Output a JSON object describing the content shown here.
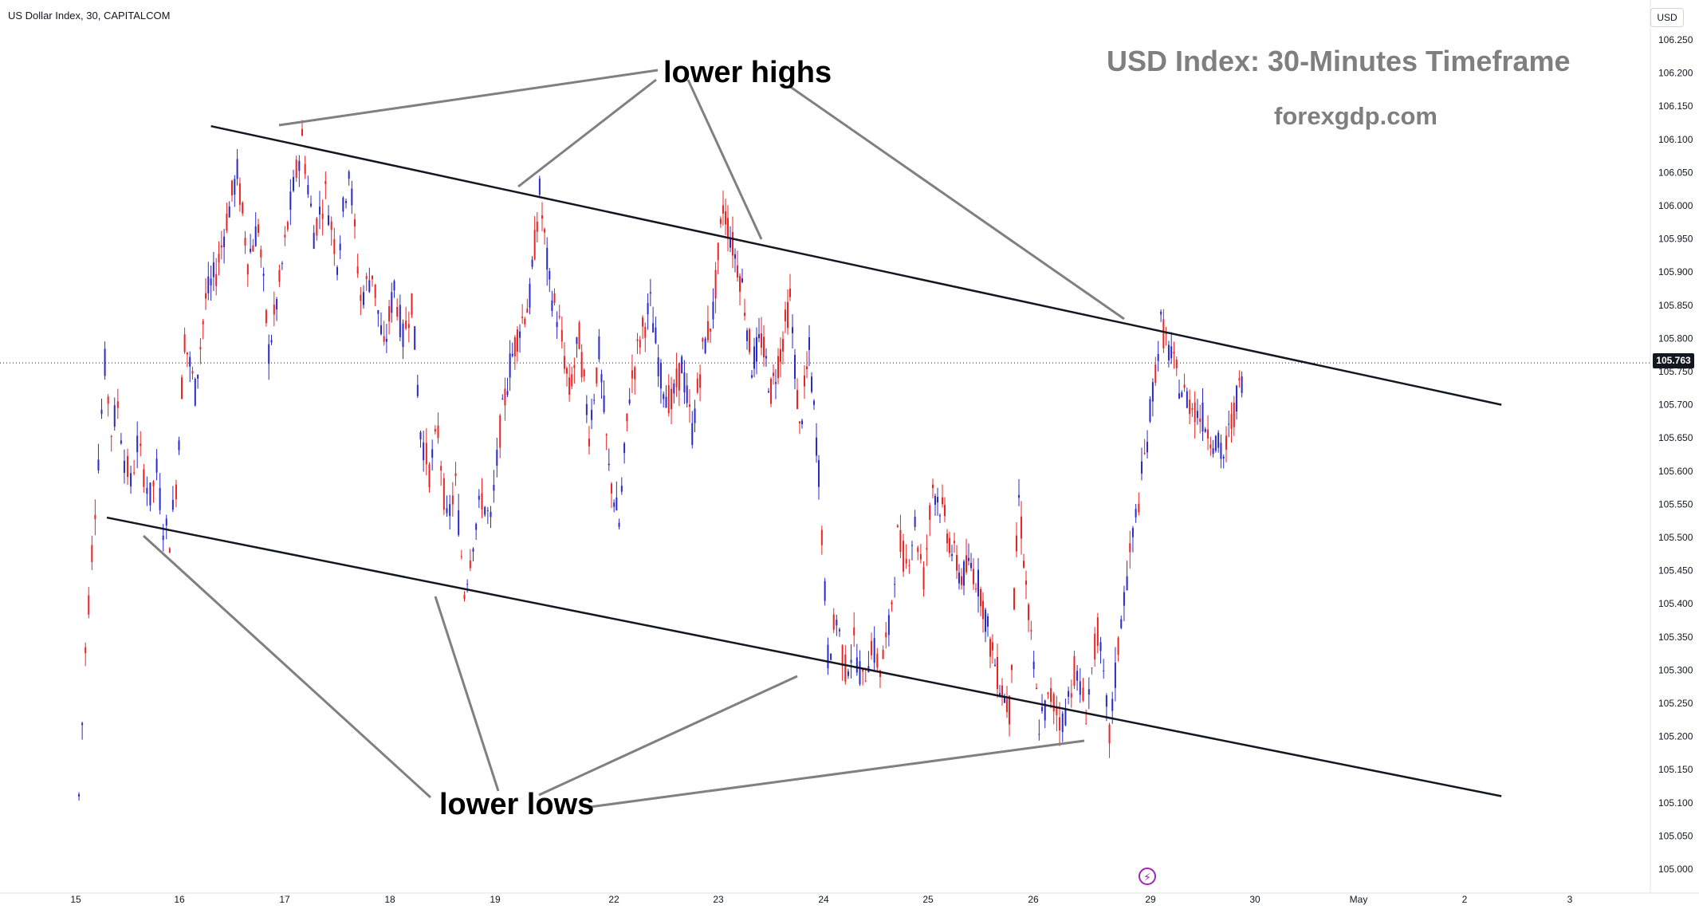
{
  "header": {
    "symbol_label": "US Dollar Index, 30, CAPITALCOM"
  },
  "axis": {
    "currency_label": "USD"
  },
  "last_price": {
    "label": "105.763",
    "value": 105.763
  },
  "titles": {
    "main": "USD Index: 30-Minutes Timeframe",
    "sub": "forexgdp.com"
  },
  "annotations": {
    "lower_highs": "lower highs",
    "lower_lows": "lower lows"
  },
  "icons": {
    "event": "lightning-icon"
  },
  "colors": {
    "up": "#2929cc",
    "down": "#ee2222",
    "trendline": "#131722",
    "callout": "#808080",
    "title_text": "#7f7f7f",
    "grid": "#e0e3eb"
  },
  "chart_data": {
    "type": "candlestick",
    "y_axis": {
      "ylim": [
        104.975,
        106.275
      ],
      "ticks": [
        "106.250",
        "106.200",
        "106.150",
        "106.100",
        "106.050",
        "106.000",
        "105.950",
        "105.900",
        "105.850",
        "105.800",
        "105.750",
        "105.700",
        "105.650",
        "105.600",
        "105.550",
        "105.500",
        "105.450",
        "105.400",
        "105.350",
        "105.300",
        "105.250",
        "105.200",
        "105.150",
        "105.100",
        "105.050",
        "105.000"
      ],
      "scale": "linear",
      "position": "right"
    },
    "x_axis": {
      "tick_labels": [
        "15",
        "16",
        "17",
        "18",
        "19",
        "22",
        "23",
        "24",
        "25",
        "26",
        "29",
        "30",
        "May",
        "2",
        "3"
      ]
    },
    "price_path": [
      [
        "15",
        105.11
      ],
      [
        "15",
        105.33
      ],
      [
        "15",
        105.48
      ],
      [
        "15",
        105.62
      ],
      [
        "15",
        105.76
      ],
      [
        "15",
        105.66
      ],
      [
        "15",
        105.7
      ],
      [
        "15",
        105.62
      ],
      [
        "15",
        105.58
      ],
      [
        "15",
        105.64
      ],
      [
        "15",
        105.6
      ],
      [
        "15",
        105.56
      ],
      [
        "15",
        105.6
      ],
      [
        "15",
        105.52
      ],
      [
        "15",
        105.5
      ],
      [
        "15",
        105.58
      ],
      [
        "16",
        105.8
      ],
      [
        "16",
        105.72
      ],
      [
        "16",
        105.86
      ],
      [
        "16",
        105.9
      ],
      [
        "16",
        105.98
      ],
      [
        "16",
        106.05
      ],
      [
        "16",
        105.92
      ],
      [
        "16",
        105.97
      ],
      [
        "16",
        105.78
      ],
      [
        "16",
        105.88
      ],
      [
        "17",
        106.0
      ],
      [
        "17",
        106.1
      ],
      [
        "17",
        105.96
      ],
      [
        "17",
        106.02
      ],
      [
        "17",
        105.92
      ],
      [
        "17",
        106.06
      ],
      [
        "17",
        105.86
      ],
      [
        "17",
        105.9
      ],
      [
        "17",
        105.78
      ],
      [
        "18",
        105.88
      ],
      [
        "18",
        105.8
      ],
      [
        "18",
        105.86
      ],
      [
        "18",
        105.66
      ],
      [
        "18",
        105.6
      ],
      [
        "18",
        105.66
      ],
      [
        "18",
        105.52
      ],
      [
        "18",
        105.58
      ],
      [
        "18",
        105.42
      ],
      [
        "18",
        105.5
      ],
      [
        "18",
        105.56
      ],
      [
        "18",
        105.52
      ],
      [
        "19",
        105.66
      ],
      [
        "19",
        105.76
      ],
      [
        "19",
        105.82
      ],
      [
        "19",
        105.86
      ],
      [
        "19",
        106.02
      ],
      [
        "19",
        105.88
      ],
      [
        "19",
        105.82
      ],
      [
        "19",
        105.72
      ],
      [
        "19",
        105.8
      ],
      [
        "19",
        105.66
      ],
      [
        "19",
        105.78
      ],
      [
        "19",
        105.6
      ],
      [
        "22",
        105.52
      ],
      [
        "22",
        105.72
      ],
      [
        "22",
        105.8
      ],
      [
        "22",
        105.85
      ],
      [
        "22",
        105.74
      ],
      [
        "22",
        105.7
      ],
      [
        "22",
        105.76
      ],
      [
        "22",
        105.66
      ],
      [
        "22",
        105.78
      ],
      [
        "22",
        105.84
      ],
      [
        "23",
        106.0
      ],
      [
        "23",
        105.94
      ],
      [
        "23",
        105.88
      ],
      [
        "23",
        105.76
      ],
      [
        "23",
        105.8
      ],
      [
        "23",
        105.72
      ],
      [
        "23",
        105.78
      ],
      [
        "23",
        105.86
      ],
      [
        "23",
        105.66
      ],
      [
        "23",
        105.78
      ],
      [
        "23",
        105.6
      ],
      [
        "24",
        105.32
      ],
      [
        "24",
        105.38
      ],
      [
        "24",
        105.3
      ],
      [
        "24",
        105.34
      ],
      [
        "24",
        105.28
      ],
      [
        "24",
        105.34
      ],
      [
        "24",
        105.3
      ],
      [
        "24",
        105.36
      ],
      [
        "24",
        105.5
      ],
      [
        "24",
        105.46
      ],
      [
        "24",
        105.52
      ],
      [
        "24",
        105.44
      ],
      [
        "25",
        105.58
      ],
      [
        "25",
        105.54
      ],
      [
        "25",
        105.48
      ],
      [
        "25",
        105.44
      ],
      [
        "25",
        105.46
      ],
      [
        "25",
        105.42
      ],
      [
        "25",
        105.34
      ],
      [
        "25",
        105.28
      ],
      [
        "25",
        105.24
      ],
      [
        "25",
        105.56
      ],
      [
        "25",
        105.38
      ],
      [
        "26",
        105.22
      ],
      [
        "26",
        105.26
      ],
      [
        "26",
        105.22
      ],
      [
        "26",
        105.3
      ],
      [
        "26",
        105.24
      ],
      [
        "26",
        105.36
      ],
      [
        "26",
        105.2
      ],
      [
        "26",
        105.38
      ],
      [
        "26",
        105.5
      ],
      [
        "26",
        105.62
      ],
      [
        "29",
        105.82
      ],
      [
        "29",
        105.72
      ],
      [
        "29",
        105.68
      ],
      [
        "29",
        105.62
      ],
      [
        "29",
        105.76
      ]
    ],
    "trendlines": [
      {
        "name": "upper",
        "from": [
          "16",
          106.12
        ],
        "to": [
          "2",
          105.7
        ]
      },
      {
        "name": "lower",
        "from": [
          "15",
          105.53
        ],
        "to": [
          "2",
          105.11
        ]
      }
    ],
    "callouts": [
      {
        "label": "lower highs",
        "targets": [
          [
            "17",
            106.1
          ],
          [
            "19",
            106.02
          ],
          [
            "23",
            105.96
          ],
          [
            "26",
            105.83
          ]
        ]
      },
      {
        "label": "lower lows",
        "targets": [
          [
            "15",
            105.5
          ],
          [
            "18",
            105.42
          ],
          [
            "24",
            105.29
          ],
          [
            "26",
            105.19
          ]
        ]
      }
    ]
  }
}
